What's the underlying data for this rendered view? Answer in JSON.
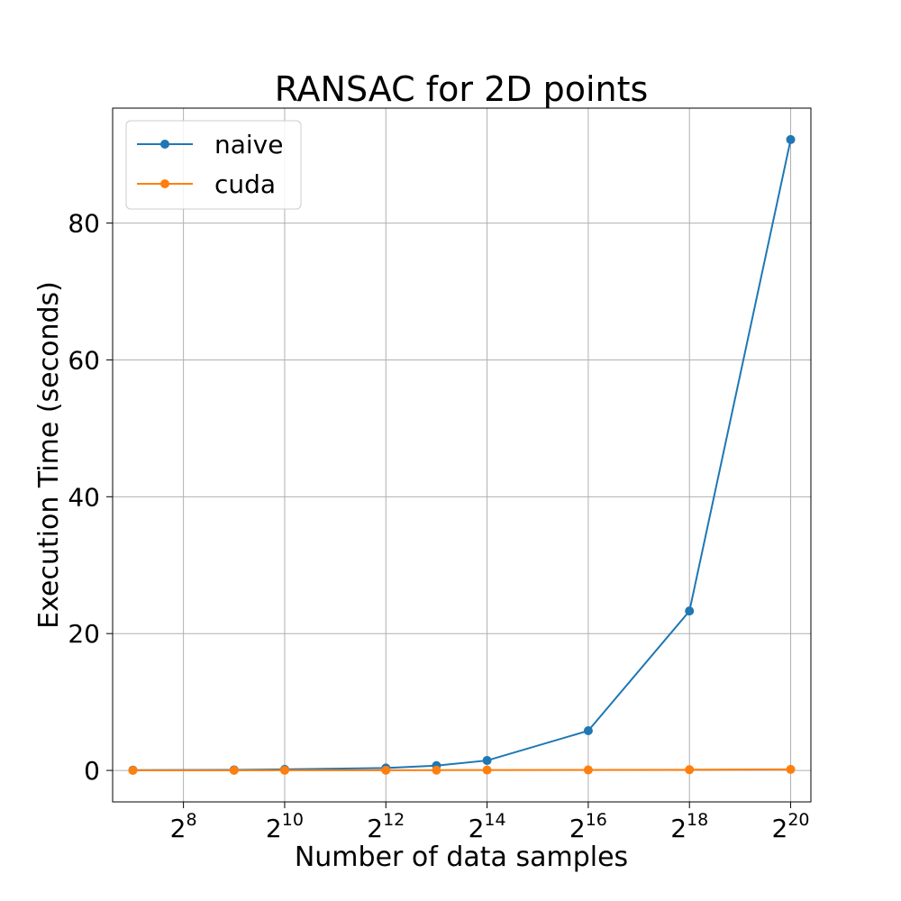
{
  "chart_data": {
    "type": "line",
    "title": "RANSAC for 2D points",
    "xlabel": "Number of data samples",
    "ylabel": "Execution Time (seconds)",
    "x_scale": "log2",
    "x_tick_base": "2",
    "x_tick_exponents": [
      "8",
      "10",
      "12",
      "14",
      "16",
      "18",
      "20"
    ],
    "x_exponent_range": [
      6.6,
      20.4
    ],
    "y_ticks": [
      "0",
      "20",
      "40",
      "60",
      "80"
    ],
    "ylim": [
      -4.6,
      96.8
    ],
    "grid": true,
    "legend_position": "upper-left",
    "x_exponents": [
      7,
      9,
      10,
      12,
      13,
      14,
      16,
      18,
      20
    ],
    "series": [
      {
        "name": "naive",
        "color": "#1f77b4",
        "values": [
          0.05,
          0.08,
          0.15,
          0.35,
          0.7,
          1.45,
          5.8,
          23.3,
          92.2
        ]
      },
      {
        "name": "cuda",
        "color": "#ff7f0e",
        "values": [
          0.01,
          0.01,
          0.02,
          0.03,
          0.05,
          0.06,
          0.07,
          0.1,
          0.15
        ]
      }
    ]
  }
}
